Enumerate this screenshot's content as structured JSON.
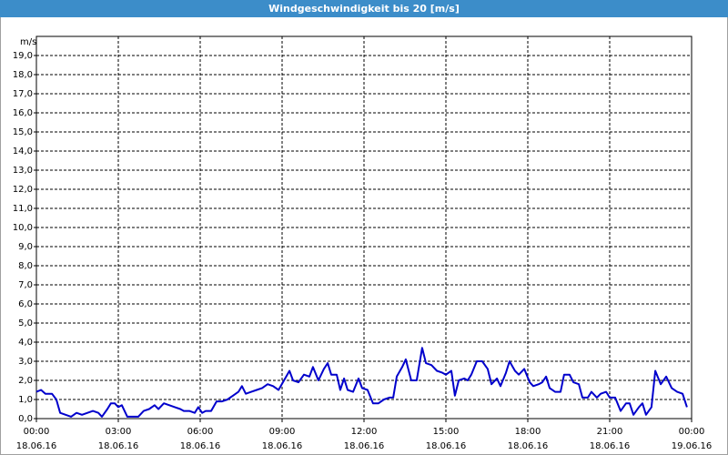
{
  "chart_data": {
    "type": "line",
    "title": "Windgeschwindigkeit bis 20 [m/s]",
    "y_label": "m/s",
    "xlim": [
      0,
      24
    ],
    "ylim": [
      0,
      20
    ],
    "grid": true,
    "xticks": [
      {
        "value": 0,
        "label": "00:00",
        "date": "18.06.16"
      },
      {
        "value": 3,
        "label": "03:00",
        "date": "18.06.16"
      },
      {
        "value": 6,
        "label": "06:00",
        "date": "18.06.16"
      },
      {
        "value": 9,
        "label": "09:00",
        "date": "18.06.16"
      },
      {
        "value": 12,
        "label": "12:00",
        "date": "18.06.16"
      },
      {
        "value": 15,
        "label": "15:00",
        "date": "18.06.16"
      },
      {
        "value": 18,
        "label": "18:00",
        "date": "18.06.16"
      },
      {
        "value": 21,
        "label": "21:00",
        "date": "18.06.16"
      },
      {
        "value": 24,
        "label": "00:00",
        "date": "19.06.16"
      }
    ],
    "yticks": [
      {
        "value": 0,
        "label": "0,0"
      },
      {
        "value": 1,
        "label": "1,0"
      },
      {
        "value": 2,
        "label": "2,0"
      },
      {
        "value": 3,
        "label": "3,0"
      },
      {
        "value": 4,
        "label": "4,0"
      },
      {
        "value": 5,
        "label": "5,0"
      },
      {
        "value": 6,
        "label": "6,0"
      },
      {
        "value": 7,
        "label": "7,0"
      },
      {
        "value": 8,
        "label": "8,0"
      },
      {
        "value": 9,
        "label": "9,0"
      },
      {
        "value": 10,
        "label": "10,0"
      },
      {
        "value": 11,
        "label": "11,0"
      },
      {
        "value": 12,
        "label": "12,0"
      },
      {
        "value": 13,
        "label": "13,0"
      },
      {
        "value": 14,
        "label": "14,0"
      },
      {
        "value": 15,
        "label": "15,0"
      },
      {
        "value": 16,
        "label": "16,0"
      },
      {
        "value": 17,
        "label": "17,0"
      },
      {
        "value": 18,
        "label": "18,0"
      },
      {
        "value": 19,
        "label": "19,0"
      }
    ],
    "series": [
      {
        "color": "#0000cc",
        "x": [
          0,
          0.17,
          0.33,
          0.57,
          0.73,
          0.87,
          1.07,
          1.27,
          1.47,
          1.67,
          1.87,
          2.07,
          2.27,
          2.4,
          2.6,
          2.73,
          2.87,
          3,
          3.13,
          3.33,
          3.53,
          3.73,
          3.93,
          4.13,
          4.33,
          4.47,
          4.67,
          4.87,
          5.07,
          5.27,
          5.4,
          5.6,
          5.8,
          5.93,
          6.07,
          6.2,
          6.4,
          6.6,
          6.8,
          7,
          7.2,
          7.4,
          7.53,
          7.67,
          7.87,
          8.07,
          8.27,
          8.47,
          8.67,
          8.87,
          9.07,
          9.27,
          9.4,
          9.6,
          9.8,
          10,
          10.13,
          10.33,
          10.53,
          10.67,
          10.8,
          11,
          11.13,
          11.27,
          11.4,
          11.6,
          11.8,
          11.93,
          12.13,
          12.33,
          12.53,
          12.73,
          12.93,
          13.07,
          13.2,
          13.4,
          13.53,
          13.73,
          13.93,
          14.13,
          14.27,
          14.47,
          14.67,
          14.87,
          15,
          15.2,
          15.33,
          15.47,
          15.67,
          15.8,
          15.93,
          16.13,
          16.33,
          16.53,
          16.67,
          16.87,
          17,
          17.2,
          17.33,
          17.53,
          17.67,
          17.87,
          18.07,
          18.2,
          18.4,
          18.53,
          18.67,
          18.8,
          19,
          19.2,
          19.33,
          19.53,
          19.67,
          19.87,
          20,
          20.2,
          20.33,
          20.53,
          20.67,
          20.87,
          21,
          21.2,
          21.4,
          21.6,
          21.73,
          21.87,
          22.07,
          22.2,
          22.33,
          22.53,
          22.67,
          22.87,
          23.07,
          23.27,
          23.47,
          23.67,
          23.83
        ],
        "values": [
          1.4,
          1.5,
          1.3,
          1.3,
          1.0,
          0.3,
          0.2,
          0.1,
          0.3,
          0.2,
          0.3,
          0.4,
          0.3,
          0.1,
          0.5,
          0.8,
          0.8,
          0.6,
          0.7,
          0.1,
          0.1,
          0.1,
          0.4,
          0.5,
          0.7,
          0.5,
          0.8,
          0.7,
          0.6,
          0.5,
          0.4,
          0.4,
          0.3,
          0.6,
          0.3,
          0.4,
          0.4,
          0.9,
          0.9,
          1.0,
          1.2,
          1.4,
          1.7,
          1.3,
          1.4,
          1.5,
          1.6,
          1.8,
          1.7,
          1.5,
          2.0,
          2.5,
          2.0,
          1.9,
          2.3,
          2.2,
          2.7,
          2.0,
          2.6,
          2.9,
          2.3,
          2.3,
          1.5,
          2.1,
          1.5,
          1.4,
          2.1,
          1.6,
          1.5,
          0.8,
          0.8,
          1.0,
          1.1,
          1.1,
          2.2,
          2.7,
          3.1,
          2.0,
          2.0,
          3.7,
          2.9,
          2.8,
          2.5,
          2.4,
          2.3,
          2.5,
          1.2,
          2.0,
          2.1,
          2.0,
          2.3,
          3.0,
          3.0,
          2.6,
          1.8,
          2.1,
          1.7,
          2.4,
          3.0,
          2.5,
          2.3,
          2.6,
          1.9,
          1.7,
          1.8,
          1.9,
          2.2,
          1.6,
          1.4,
          1.4,
          2.3,
          2.3,
          1.9,
          1.8,
          1.1,
          1.1,
          1.4,
          1.1,
          1.3,
          1.4,
          1.1,
          1.1,
          0.4,
          0.8,
          0.8,
          0.2,
          0.6,
          0.8,
          0.2,
          0.6,
          2.5,
          1.8,
          2.2,
          1.6,
          1.4,
          1.3,
          0.6
        ]
      }
    ]
  }
}
